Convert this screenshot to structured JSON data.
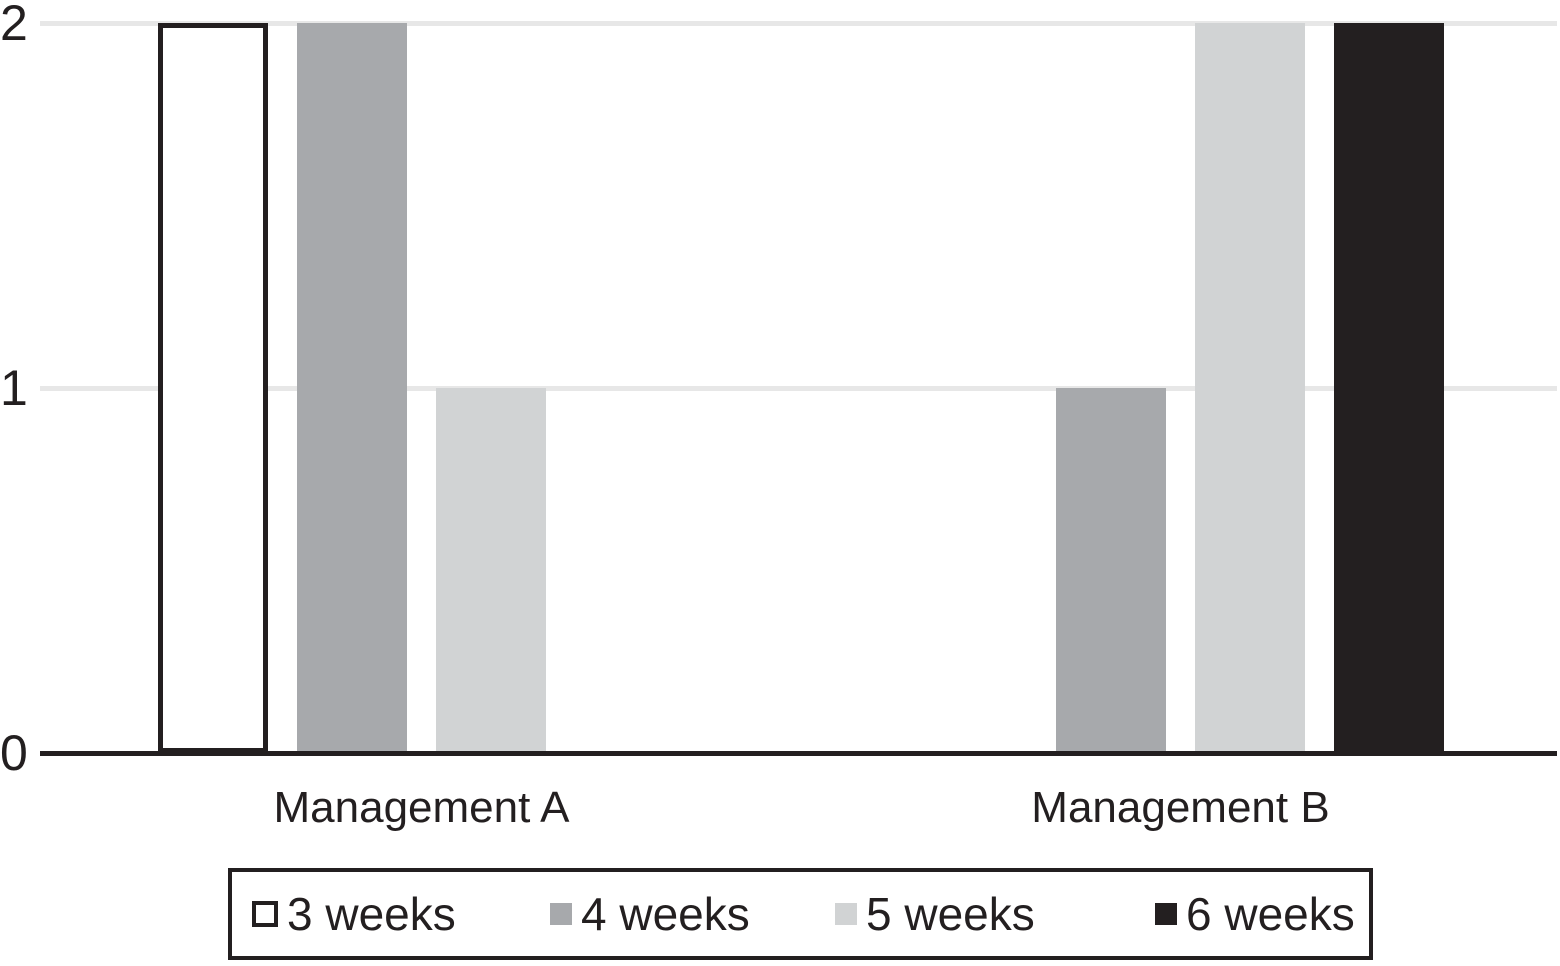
{
  "chart_data": {
    "type": "bar",
    "title": "",
    "xlabel": "",
    "ylabel": "",
    "categories": [
      "Management A",
      "Management B"
    ],
    "series": [
      {
        "name": "3 weeks",
        "fill": "#ffffff",
        "border": "#231f20",
        "values": [
          2,
          0
        ]
      },
      {
        "name": "4 weeks",
        "fill": "#a7a9ac",
        "border": null,
        "values": [
          2,
          1
        ]
      },
      {
        "name": "5 weeks",
        "fill": "#d1d3d4",
        "border": null,
        "values": [
          1,
          2
        ]
      },
      {
        "name": "6 weeks",
        "fill": "#231f20",
        "border": null,
        "values": [
          0,
          2
        ]
      }
    ],
    "ylim": [
      0,
      2
    ],
    "yticks": [
      0,
      1,
      2
    ],
    "ytick_labels": [
      "0",
      "1",
      "2"
    ],
    "grid": true,
    "legend_position": "bottom"
  },
  "colors": {
    "axis": "#231f20",
    "grid": "#e7e7e7",
    "text": "#231f20",
    "background": "#ffffff"
  }
}
